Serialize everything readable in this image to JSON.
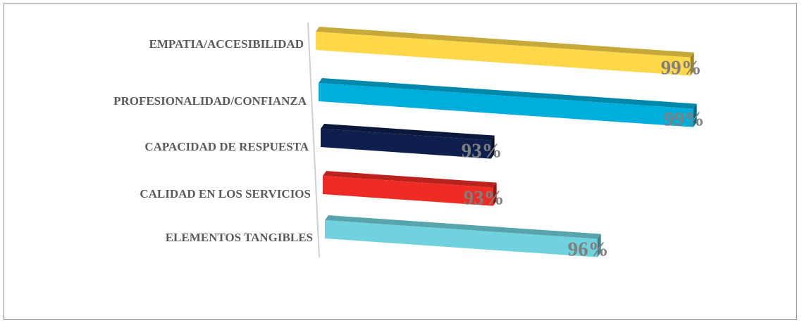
{
  "chart_data": {
    "type": "bar",
    "orientation": "horizontal",
    "style": "3d",
    "categories": [
      "EMPATIA/ACCESIBILIDAD",
      "PROFESIONALIDAD/CONFIANZA",
      "CAPACIDAD DE RESPUESTA",
      "CALIDAD EN LOS SERVICIOS",
      "ELEMENTOS TANGIBLES"
    ],
    "values": [
      99,
      99,
      93,
      93,
      96
    ],
    "data_labels": [
      "99%",
      "99%",
      "93%",
      "93%",
      "96%"
    ],
    "colors": [
      "#FFD84A",
      "#00AEDB",
      "#0E1F4D",
      "#EE2B25",
      "#6FD2DE"
    ],
    "xlim": [
      88,
      100
    ],
    "grid": false,
    "legend": "none"
  }
}
